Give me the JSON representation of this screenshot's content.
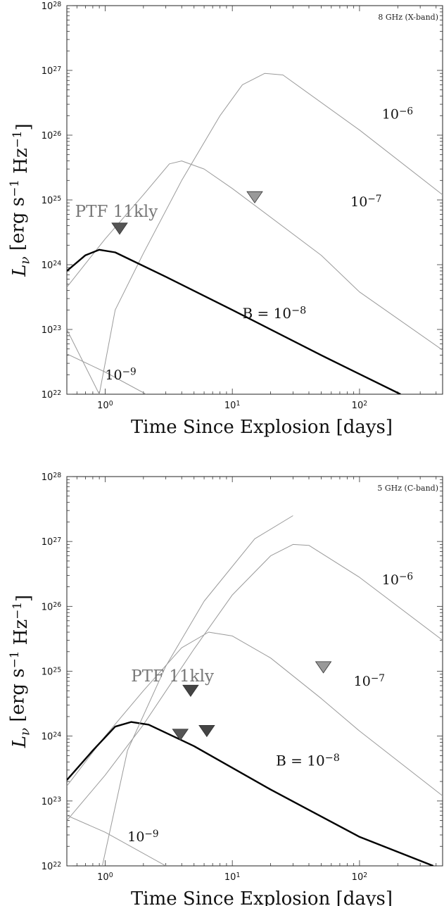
{
  "chart_data": [
    {
      "type": "line",
      "band_label": "8 GHz (X-band)",
      "xlabel": "Time Since Explosion [days]",
      "ylabel": "L_ν [erg s^-1 Hz^-1]",
      "xscale": "log",
      "yscale": "log",
      "xlim": [
        0.5,
        450
      ],
      "ylim": [
        1e+22,
        1e+28
      ],
      "x_ticks": [
        {
          "base": "10",
          "exp": "0",
          "value": 1
        },
        {
          "base": "10",
          "exp": "1",
          "value": 10
        },
        {
          "base": "10",
          "exp": "2",
          "value": 100
        }
      ],
      "y_ticks": [
        {
          "base": "10",
          "exp": "22",
          "value": 1e+22
        },
        {
          "base": "10",
          "exp": "23",
          "value": 1e+23
        },
        {
          "base": "10",
          "exp": "24",
          "value": 1e+24
        },
        {
          "base": "10",
          "exp": "25",
          "value": 1e+25
        },
        {
          "base": "10",
          "exp": "26",
          "value": 1e+26
        },
        {
          "base": "10",
          "exp": "27",
          "value": 1e+27
        },
        {
          "base": "10",
          "exp": "28",
          "value": 1e+28
        }
      ],
      "series": [
        {
          "label": "10^-6",
          "color": "#9a9a9a",
          "width": 1,
          "points": [
            [
              0.5,
              1e+23
            ],
            [
              0.9,
              1e+22
            ],
            [
              1.2,
              2e+23
            ],
            [
              2.0,
              1.5e+24
            ],
            [
              4.0,
              2e+25
            ],
            [
              8.0,
              2e+26
            ],
            [
              12.0,
              6e+26
            ],
            [
              18.0,
              9e+26
            ],
            [
              25.0,
              8.5e+26
            ],
            [
              100.0,
              1.2e+26
            ],
            [
              450.0,
              1.2e+25
            ]
          ]
        },
        {
          "label": "10^-7",
          "color": "#9a9a9a",
          "width": 1,
          "points": [
            [
              0.5,
              4.5e+23
            ],
            [
              1.0,
              2.5e+24
            ],
            [
              2.0,
              1.2e+25
            ],
            [
              3.2,
              3.6e+25
            ],
            [
              4.0,
              4e+25
            ],
            [
              6.0,
              3e+25
            ],
            [
              10.0,
              1.5e+25
            ],
            [
              50.0,
              1.4e+24
            ],
            [
              100.0,
              3.8e+23
            ],
            [
              450.0,
              4.8e+22
            ]
          ]
        },
        {
          "label": "B = 10^-8",
          "color": "#000000",
          "width": 2.4,
          "points": [
            [
              0.5,
              8e+23
            ],
            [
              0.7,
              1.4e+24
            ],
            [
              0.9,
              1.7e+24
            ],
            [
              1.2,
              1.55e+24
            ],
            [
              3.0,
              6.5e+23
            ],
            [
              10.0,
              2e+23
            ],
            [
              50.0,
              4e+22
            ],
            [
              210.0,
              1e+22
            ]
          ]
        },
        {
          "label": "10^-9",
          "color": "#9a9a9a",
          "width": 1,
          "points": [
            [
              0.5,
              4.2e+22
            ],
            [
              1.0,
              2.2e+22
            ],
            [
              2.1,
              1e+22
            ]
          ]
        }
      ],
      "upper_limits": [
        {
          "x": 1.3,
          "y": 3.6e+24,
          "color": "#555555"
        },
        {
          "x": 15.0,
          "y": 1.1e+25,
          "color": "#999999"
        }
      ],
      "annotations": [
        {
          "text": "10",
          "exp": "−6",
          "x": 150,
          "y": 1.8e+26,
          "cls": "curve-label"
        },
        {
          "text": "10",
          "exp": "−7",
          "x": 85,
          "y": 8e+24,
          "cls": "curve-label"
        },
        {
          "text": "B = 10",
          "exp": "−8",
          "x": 12,
          "y": 1.5e+23,
          "cls": "curve-label-big"
        },
        {
          "text": "10",
          "exp": "−9",
          "x": 1.0,
          "y": 1.7e+22,
          "cls": "curve-label"
        },
        {
          "text": "PTF 11kly",
          "x": 0.58,
          "y": 5.5e+24,
          "cls": "src-label"
        }
      ]
    },
    {
      "type": "line",
      "band_label": "5 GHz (C-band)",
      "xlabel": "Time Since Explosion [days]",
      "ylabel": "L_ν [erg s^-1 Hz^-1]",
      "xscale": "log",
      "yscale": "log",
      "xlim": [
        0.5,
        450
      ],
      "ylim": [
        1e+22,
        1e+28
      ],
      "x_ticks": [
        {
          "base": "10",
          "exp": "0",
          "value": 1
        },
        {
          "base": "10",
          "exp": "1",
          "value": 10
        },
        {
          "base": "10",
          "exp": "2",
          "value": 100
        }
      ],
      "y_ticks": [
        {
          "base": "10",
          "exp": "22",
          "value": 1e+22
        },
        {
          "base": "10",
          "exp": "23",
          "value": 1e+23
        },
        {
          "base": "10",
          "exp": "24",
          "value": 1e+24
        },
        {
          "base": "10",
          "exp": "25",
          "value": 1e+25
        },
        {
          "base": "10",
          "exp": "26",
          "value": 1e+26
        },
        {
          "base": "10",
          "exp": "27",
          "value": 1e+27
        },
        {
          "base": "10",
          "exp": "28",
          "value": 1e+28
        }
      ],
      "series": [
        {
          "label": "10^-6",
          "color": "#9a9a9a",
          "width": 1,
          "points": [
            [
              0.5,
              5e+22
            ],
            [
              1.0,
              2.5e+23
            ],
            [
              2.0,
              1.5e+24
            ],
            [
              5.0,
              2.2e+25
            ],
            [
              10.0,
              1.5e+26
            ],
            [
              20.0,
              6e+26
            ],
            [
              30.0,
              9e+26
            ],
            [
              40.0,
              8.7e+26
            ],
            [
              100.0,
              2.8e+26
            ],
            [
              450.0,
              3e+25
            ]
          ]
        },
        {
          "label": "10^-7",
          "color": "#9a9a9a",
          "width": 1,
          "points": [
            [
              0.5,
              1.7e+23
            ],
            [
              1.0,
              1e+24
            ],
            [
              2.0,
              5e+24
            ],
            [
              4.0,
              2.3e+25
            ],
            [
              6.5,
              4e+25
            ],
            [
              10.0,
              3.5e+25
            ],
            [
              20.0,
              1.6e+25
            ],
            [
              50.0,
              3.8e+24
            ],
            [
              100.0,
              1.2e+24
            ],
            [
              450.0,
              1.2e+23
            ]
          ]
        },
        {
          "label": "B = 10^-8",
          "color": "#000000",
          "width": 2.4,
          "points": [
            [
              0.5,
              2.1e+23
            ],
            [
              0.8,
              6e+23
            ],
            [
              1.2,
              1.4e+24
            ],
            [
              1.6,
              1.65e+24
            ],
            [
              2.2,
              1.5e+24
            ],
            [
              5.0,
              7e+23
            ],
            [
              20.0,
              1.5e+23
            ],
            [
              100.0,
              2.8e+22
            ],
            [
              380.0,
              1e+22
            ]
          ]
        },
        {
          "label": "10^-9",
          "color": "#9a9a9a",
          "width": 1,
          "points": [
            [
              0.5,
              6e+22
            ],
            [
              1.0,
              3.3e+22
            ],
            [
              3.0,
              1e+22
            ]
          ]
        },
        {
          "label": "",
          "color": "#9a9a9a",
          "width": 1,
          "points": [
            [
              0.95,
              1e+22
            ],
            [
              1.5,
              6e+23
            ],
            [
              3.0,
              1.2e+25
            ],
            [
              6.0,
              1.2e+26
            ],
            [
              15.0,
              1.1e+27
            ],
            [
              30.0,
              2.5e+27
            ]
          ]
        }
      ],
      "upper_limits": [
        {
          "x": 3.9,
          "y": 1.05e+24,
          "color": "#555555"
        },
        {
          "x": 4.7,
          "y": 5e+24,
          "color": "#444444"
        },
        {
          "x": 6.3,
          "y": 1.2e+24,
          "color": "#444444"
        },
        {
          "x": 52.0,
          "y": 1.15e+25,
          "color": "#999999"
        }
      ],
      "annotations": [
        {
          "text": "10",
          "exp": "−6",
          "x": 150,
          "y": 2.2e+26,
          "cls": "curve-label"
        },
        {
          "text": "10",
          "exp": "−7",
          "x": 90,
          "y": 6e+24,
          "cls": "curve-label"
        },
        {
          "text": "B = 10",
          "exp": "−8",
          "x": 22,
          "y": 3.5e+23,
          "cls": "curve-label-big"
        },
        {
          "text": "10",
          "exp": "−9",
          "x": 1.5,
          "y": 2.4e+22,
          "cls": "curve-label"
        },
        {
          "text": "PTF 11kly",
          "x": 1.6,
          "y": 7e+24,
          "cls": "src-label"
        }
      ]
    }
  ]
}
